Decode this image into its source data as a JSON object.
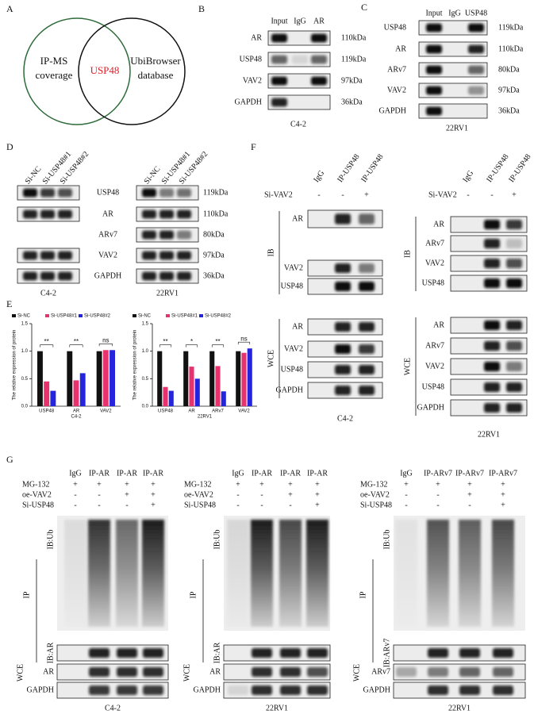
{
  "panel_a": {
    "label": "A",
    "left": [
      "IP-MS",
      "coverage"
    ],
    "center": "USP48",
    "right": [
      "UbiBrowser",
      "database"
    ]
  },
  "panel_b": {
    "label": "B",
    "lanes": [
      "Input",
      "IgG",
      "AR"
    ],
    "rows": [
      "AR",
      "USP48",
      "VAV2",
      "GAPDH"
    ],
    "sizes": [
      "110kDa",
      "119kDa",
      "97kDa",
      "36kDa"
    ],
    "cell": "C4-2"
  },
  "panel_c": {
    "label": "C",
    "lanes": [
      "Input",
      "IgG",
      "USP48"
    ],
    "rows": [
      "USP48",
      "AR",
      "ARv7",
      "VAV2",
      "GAPDH"
    ],
    "sizes": [
      "119kDa",
      "110kDa",
      "80kDa",
      "97kDa",
      "36kDa"
    ],
    "cell": "22RV1"
  },
  "panel_d": {
    "label": "D",
    "lanes": [
      "Si-NC",
      "Si-USP48#1",
      "Si-USP48#2"
    ],
    "rows": [
      "USP48",
      "AR",
      "ARv7",
      "VAV2",
      "GAPDH"
    ],
    "sizes": [
      "119kDa",
      "110kDa",
      "80kDa",
      "97kDa",
      "36kDa"
    ],
    "cells": [
      "C4-2",
      "22RV1"
    ]
  },
  "panel_e": {
    "label": "E"
  },
  "chart_data": [
    {
      "type": "bar",
      "ylabel": "The relative expression of protein",
      "xlabel": "C4-2",
      "categories": [
        "USP48",
        "AR",
        "VAV2"
      ],
      "series": [
        {
          "name": "Si-NC",
          "color": "#111111",
          "values": [
            1.0,
            1.0,
            1.0
          ]
        },
        {
          "name": "Si-USP48#1",
          "color": "#e8326e",
          "values": [
            0.45,
            0.47,
            1.02
          ]
        },
        {
          "name": "Si-USP48#2",
          "color": "#2424dd",
          "values": [
            0.28,
            0.6,
            1.02
          ]
        }
      ],
      "ylim": [
        0,
        1.5
      ],
      "yticks": [
        {
          "value": 0,
          "label": "0.0"
        },
        0.5,
        {
          "value": 1,
          "label": "1.0"
        },
        1.5
      ],
      "annotations": [
        "**",
        "**",
        "ns"
      ]
    },
    {
      "type": "bar",
      "ylabel": "The relative expression of protein",
      "xlabel": "22RV1",
      "categories": [
        "USP48",
        "AR",
        "ARv7",
        "VAV2"
      ],
      "series": [
        {
          "name": "Si-NC",
          "color": "#111111",
          "values": [
            1.0,
            1.0,
            1.0,
            1.0
          ]
        },
        {
          "name": "Si-USP48#1",
          "color": "#e8326e",
          "values": [
            0.35,
            0.72,
            0.73,
            0.97
          ]
        },
        {
          "name": "Si-USP48#2",
          "color": "#2424dd",
          "values": [
            0.28,
            0.5,
            0.27,
            1.05
          ]
        }
      ],
      "ylim": [
        0,
        1.5
      ],
      "yticks": [
        {
          "value": 0,
          "label": "0.0"
        },
        0.5,
        {
          "value": 1,
          "label": "1.0"
        },
        1.5
      ],
      "annotations": [
        "**",
        "*",
        "**",
        "ns"
      ]
    }
  ],
  "panel_f": {
    "label": "F",
    "blots": [
      {
        "lanes": [
          "IgG",
          "IP-USP48",
          "IP-USP48"
        ],
        "treatment": "Si-VAV2",
        "signs": [
          "-",
          "-",
          "+"
        ],
        "ip_label": "IB",
        "ip_rows": [
          "AR",
          "VAV2",
          "USP48"
        ],
        "wce_label": "WCE",
        "wce_rows": [
          "AR",
          "VAV2",
          "USP48",
          "GAPDH"
        ],
        "cell": "C4-2"
      },
      {
        "lanes": [
          "IgG",
          "IP-USP48",
          "IP-USP48"
        ],
        "treatment": "Si-VAV2",
        "signs": [
          "-",
          "-",
          "+"
        ],
        "ip_label": "IB",
        "ip_rows": [
          "AR",
          "ARv7",
          "VAV2",
          "USP48"
        ],
        "wce_label": "WCE",
        "wce_rows": [
          "AR",
          "ARv7",
          "VAV2",
          "USP48",
          "GAPDH"
        ],
        "cell": "22RV1"
      }
    ]
  },
  "panel_g": {
    "label": "G",
    "blots": [
      {
        "lanes": [
          "IgG",
          "IP-AR",
          "IP-AR",
          "IP-AR"
        ],
        "treatments": [
          {
            "name": "MG-132",
            "signs": [
              "+",
              "+",
              "+",
              "+"
            ]
          },
          {
            "name": "oe-VAV2",
            "signs": [
              "-",
              "-",
              "+",
              "+"
            ]
          },
          {
            "name": "Si-USP48",
            "signs": [
              "-",
              "-",
              "-",
              "+"
            ]
          }
        ],
        "ip_label": "IP",
        "ub_label": "IB:Ub",
        "ip_row": "IB:AR",
        "wce_label": "WCE",
        "wce_rows": [
          "AR",
          "GAPDH"
        ],
        "cell": "C4-2"
      },
      {
        "lanes": [
          "IgG",
          "IP-AR",
          "IP-AR",
          "IP-AR"
        ],
        "treatments": [
          {
            "name": "MG-132",
            "signs": [
              "+",
              "+",
              "+",
              "+"
            ]
          },
          {
            "name": "oe-VAV2",
            "signs": [
              "-",
              "-",
              "+",
              "+"
            ]
          },
          {
            "name": "Si-USP48",
            "signs": [
              "-",
              "-",
              "-",
              "+"
            ]
          }
        ],
        "ip_label": "IP",
        "ub_label": "IB:Ub",
        "ip_row": "IB:AR",
        "wce_label": "WCE",
        "wce_rows": [
          "AR",
          "GAPDH"
        ],
        "cell": "22RV1"
      },
      {
        "lanes": [
          "IgG",
          "IP-ARv7",
          "IP-ARv7",
          "IP-ARv7"
        ],
        "treatments": [
          {
            "name": "MG-132",
            "signs": [
              "+",
              "+",
              "+",
              "+"
            ]
          },
          {
            "name": "oe-VAV2",
            "signs": [
              "-",
              "-",
              "+",
              "+"
            ]
          },
          {
            "name": "Si-USP48",
            "signs": [
              "-",
              "-",
              "-",
              "+"
            ]
          }
        ],
        "ip_label": "IP",
        "ub_label": "IB:Ub",
        "ip_row": "IB:ARv7",
        "wce_label": "WCE",
        "wce_rows": [
          "ARv7",
          "GAPDH"
        ],
        "cell": "22RV1"
      }
    ]
  }
}
